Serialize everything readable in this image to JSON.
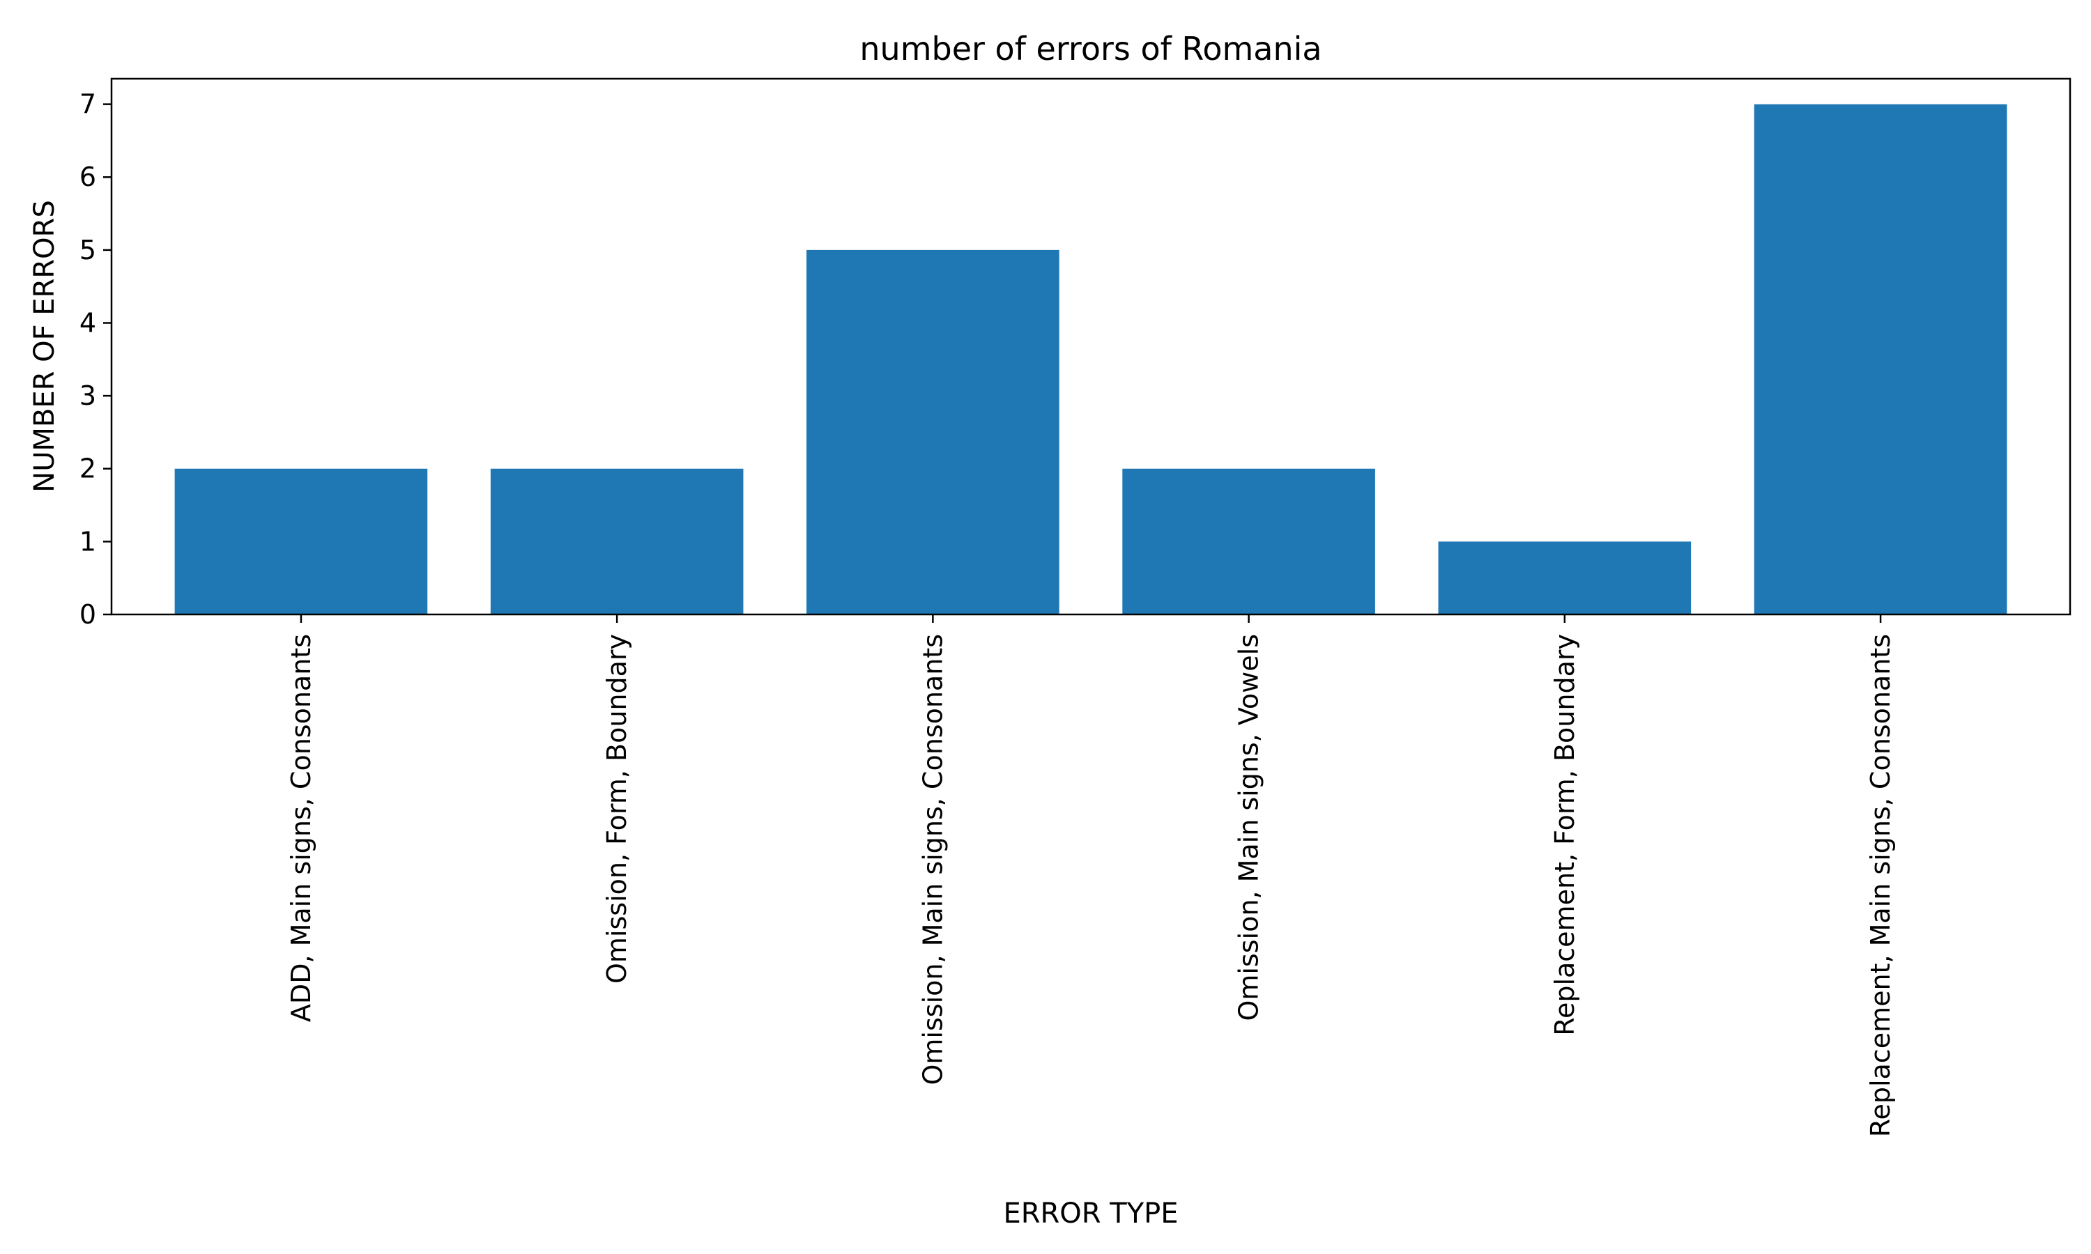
{
  "chart_data": {
    "type": "bar",
    "title": "number of errors of Romania",
    "xlabel": "ERROR TYPE",
    "ylabel": "NUMBER OF ERRORS",
    "categories": [
      "ADD, Main signs, Consonants",
      "Omission, Form, Boundary",
      "Omission, Main signs, Consonants",
      "Omission, Main signs, Vowels",
      "Replacement, Form, Boundary",
      "Replacement, Main signs, Consonants"
    ],
    "values": [
      2,
      2,
      5,
      2,
      1,
      7
    ],
    "ylim": [
      0,
      7.35
    ],
    "yticks": [
      0,
      1,
      2,
      3,
      4,
      5,
      6,
      7
    ],
    "grid": false,
    "bar_color": "#1f77b4"
  }
}
